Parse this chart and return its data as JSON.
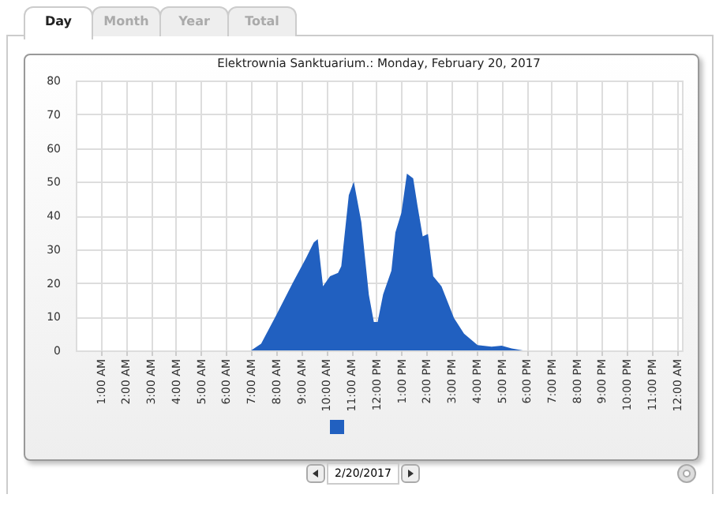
{
  "chart_data": {
    "type": "area",
    "title": "Elektrownia Sanktuarium.: Monday, February 20, 2017",
    "annotations": [
      "Day",
      "Month",
      "Year",
      "Total",
      "2/20/2017"
    ],
    "x": [
      7.0,
      7.4,
      8.0,
      8.66,
      9.2,
      9.5,
      9.66,
      9.87,
      10.15,
      10.47,
      10.6,
      10.9,
      11.1,
      11.4,
      11.7,
      11.9,
      12.05,
      12.27,
      12.6,
      12.76,
      13.0,
      13.22,
      13.47,
      13.64,
      13.85,
      14.06,
      14.27,
      14.6,
      15.1,
      15.5,
      16.04,
      16.6,
      17.0,
      17.4,
      17.85
    ],
    "series": [
      {
        "color": "#2160c0",
        "values": [
          0,
          2,
          10.4,
          20,
          27.5,
          32,
          33,
          19,
          22,
          23,
          25,
          46,
          50,
          38,
          16.5,
          8.4,
          8.4,
          16.6,
          23.6,
          35,
          40.8,
          52.4,
          51,
          43,
          33.8,
          34.5,
          22,
          19,
          9.6,
          5,
          1.6,
          1.1,
          1.4,
          0.6,
          0
        ]
      }
    ],
    "xlim": [
      0,
      24.2
    ],
    "xticks": [
      {
        "value": 1,
        "label": "1:00 AM"
      },
      {
        "value": 2,
        "label": "2:00 AM"
      },
      {
        "value": 3,
        "label": "3:00 AM"
      },
      {
        "value": 4,
        "label": "4:00 AM"
      },
      {
        "value": 5,
        "label": "5:00 AM"
      },
      {
        "value": 6,
        "label": "6:00 AM"
      },
      {
        "value": 7,
        "label": "7:00 AM"
      },
      {
        "value": 8,
        "label": "8:00 AM"
      },
      {
        "value": 9,
        "label": "9:00 AM"
      },
      {
        "value": 10,
        "label": "10:00 AM"
      },
      {
        "value": 11,
        "label": "11:00 AM"
      },
      {
        "value": 12,
        "label": "12:00 PM"
      },
      {
        "value": 13,
        "label": "1:00 PM"
      },
      {
        "value": 14,
        "label": "2:00 PM"
      },
      {
        "value": 15,
        "label": "3:00 PM"
      },
      {
        "value": 16,
        "label": "4:00 PM"
      },
      {
        "value": 17,
        "label": "5:00 PM"
      },
      {
        "value": 18,
        "label": "6:00 PM"
      },
      {
        "value": 19,
        "label": "7:00 PM"
      },
      {
        "value": 20,
        "label": "8:00 PM"
      },
      {
        "value": 21,
        "label": "9:00 PM"
      },
      {
        "value": 22,
        "label": "10:00 PM"
      },
      {
        "value": 23,
        "label": "11:00 PM"
      },
      {
        "value": 24,
        "label": "12:00 AM"
      }
    ],
    "ylim": [
      0,
      80
    ],
    "yticks": [
      0,
      10,
      20,
      30,
      40,
      50,
      60,
      70,
      80
    ],
    "grid": true
  }
}
